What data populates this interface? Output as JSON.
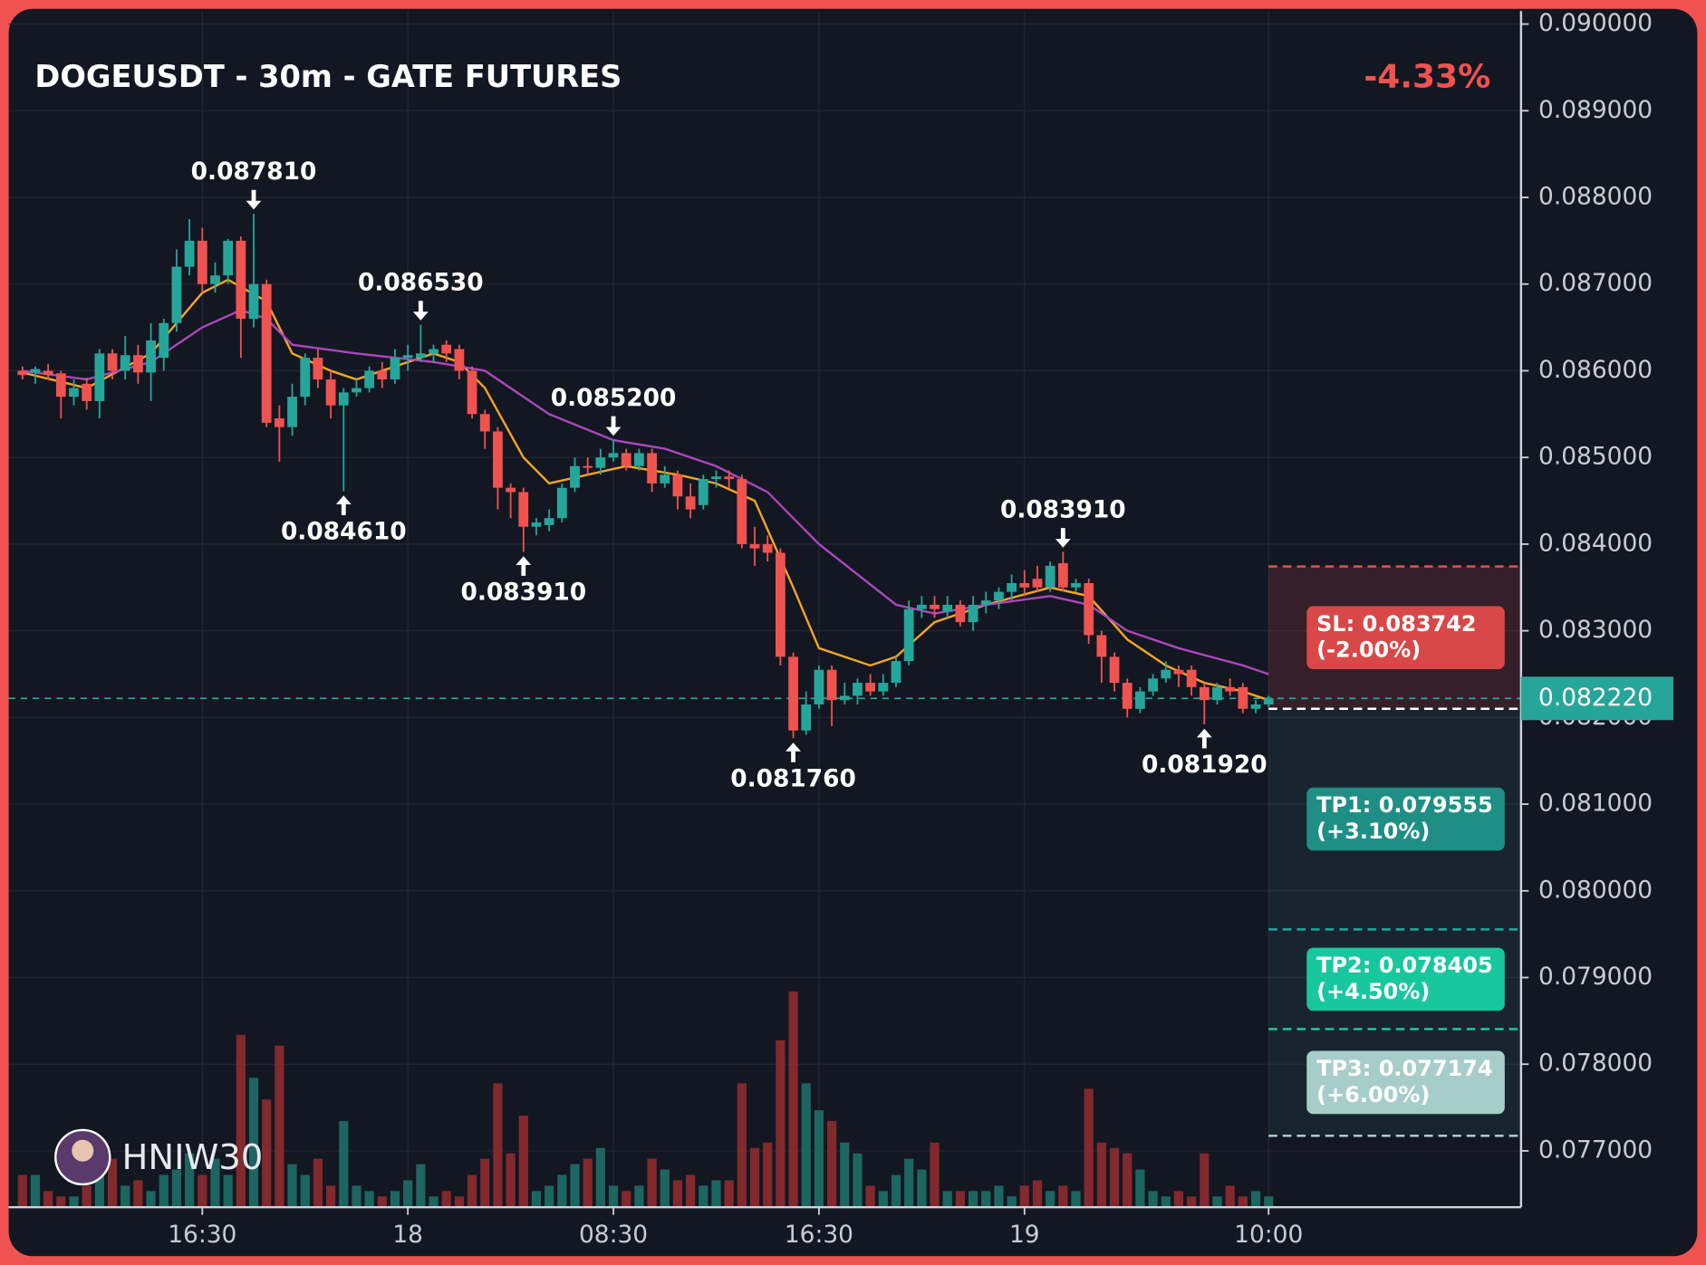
{
  "chart_data": {
    "type": "candlestick",
    "title": "DOGEUSDT - 30m - GATE FUTURES",
    "change": "-4.33%",
    "watermark": "HNIW30",
    "colors": {
      "up": "#26a69a",
      "down": "#ef5350",
      "up_volume": "#1f6e67",
      "down_volume": "#8e2b2d"
    },
    "open": [
      0.086,
      0.08598,
      0.086,
      0.08597,
      0.0857,
      0.08585,
      0.08565,
      0.0862,
      0.086,
      0.08618,
      0.08598,
      0.08615,
      0.08655,
      0.0872,
      0.0875,
      0.087,
      0.0871,
      0.0875,
      0.0866,
      0.087,
      0.08545,
      0.08535,
      0.0857,
      0.08615,
      0.0859,
      0.0856,
      0.08575,
      0.0858,
      0.086,
      0.0859,
      0.08615,
      0.08615,
      0.0862,
      0.0863,
      0.08625,
      0.086,
      0.0855,
      0.0853,
      0.08465,
      0.0846,
      0.0842,
      0.08422,
      0.0843,
      0.08465,
      0.0849,
      0.08488,
      0.085,
      0.08505,
      0.0849,
      0.08505,
      0.0847,
      0.0848,
      0.08455,
      0.08445,
      0.08475,
      0.08478,
      0.08475,
      0.084,
      0.084,
      0.0839,
      0.0827,
      0.08185,
      0.08215,
      0.08255,
      0.0822,
      0.08225,
      0.0824,
      0.0823,
      0.0824,
      0.08265,
      0.08325,
      0.0833,
      0.08322,
      0.0833,
      0.0831,
      0.0833,
      0.08335,
      0.08345,
      0.08355,
      0.0836,
      0.0835,
      0.08378,
      0.0835,
      0.08355,
      0.08295,
      0.0827,
      0.0824,
      0.0821,
      0.0823,
      0.08245,
      0.08255,
      0.08255,
      0.08235,
      0.0822,
      0.08235,
      0.08235,
      0.0821,
      0.08215
    ],
    "high": [
      0.08605,
      0.08605,
      0.08608,
      0.086,
      0.0859,
      0.08592,
      0.08625,
      0.08625,
      0.0864,
      0.0863,
      0.08655,
      0.0866,
      0.0874,
      0.08775,
      0.08765,
      0.08725,
      0.08752,
      0.08755,
      0.08781,
      0.08705,
      0.0856,
      0.08585,
      0.0862,
      0.08625,
      0.086,
      0.0858,
      0.0859,
      0.08605,
      0.0861,
      0.08625,
      0.0863,
      0.08653,
      0.0863,
      0.08635,
      0.0863,
      0.08605,
      0.08555,
      0.08535,
      0.0847,
      0.08465,
      0.0843,
      0.0844,
      0.0847,
      0.085,
      0.085,
      0.0851,
      0.0852,
      0.0851,
      0.0851,
      0.0851,
      0.0849,
      0.08485,
      0.0847,
      0.0848,
      0.08485,
      0.08485,
      0.0848,
      0.0842,
      0.0841,
      0.08395,
      0.08275,
      0.0823,
      0.0826,
      0.0826,
      0.0824,
      0.08245,
      0.0825,
      0.0825,
      0.0827,
      0.08335,
      0.0834,
      0.0834,
      0.0834,
      0.08335,
      0.0834,
      0.08345,
      0.0835,
      0.08365,
      0.0837,
      0.08375,
      0.0838,
      0.08391,
      0.0836,
      0.0836,
      0.083,
      0.08275,
      0.08245,
      0.08235,
      0.0825,
      0.08265,
      0.0826,
      0.0826,
      0.0824,
      0.0824,
      0.08245,
      0.0824,
      0.0822,
      0.08225
    ],
    "low": [
      0.0859,
      0.08585,
      0.0859,
      0.08545,
      0.0856,
      0.08555,
      0.08545,
      0.0859,
      0.0859,
      0.08585,
      0.08565,
      0.086,
      0.08645,
      0.0871,
      0.0869,
      0.0869,
      0.087,
      0.08615,
      0.0865,
      0.08535,
      0.08495,
      0.08525,
      0.0856,
      0.0858,
      0.08545,
      0.08461,
      0.0857,
      0.08575,
      0.0858,
      0.08585,
      0.086,
      0.0861,
      0.0861,
      0.0861,
      0.0859,
      0.08545,
      0.0851,
      0.0844,
      0.0843,
      0.08391,
      0.0841,
      0.08415,
      0.08425,
      0.0846,
      0.0848,
      0.0848,
      0.08495,
      0.08485,
      0.08485,
      0.0846,
      0.08465,
      0.0844,
      0.0843,
      0.0844,
      0.08465,
      0.08465,
      0.08395,
      0.08375,
      0.0838,
      0.0826,
      0.08176,
      0.0818,
      0.0821,
      0.0819,
      0.08215,
      0.08215,
      0.08225,
      0.08225,
      0.08235,
      0.0826,
      0.08315,
      0.08315,
      0.08315,
      0.08305,
      0.083,
      0.0832,
      0.08325,
      0.08335,
      0.0834,
      0.08345,
      0.08345,
      0.08345,
      0.08345,
      0.08285,
      0.0824,
      0.0823,
      0.082,
      0.08205,
      0.08225,
      0.0824,
      0.08235,
      0.08225,
      0.08192,
      0.08215,
      0.08225,
      0.08205,
      0.08205,
      0.08212
    ],
    "close": [
      0.08595,
      0.08602,
      0.08595,
      0.0857,
      0.0858,
      0.08565,
      0.0862,
      0.086,
      0.08618,
      0.08598,
      0.08635,
      0.08655,
      0.0872,
      0.0875,
      0.087,
      0.0871,
      0.0875,
      0.0866,
      0.087,
      0.0854,
      0.08535,
      0.0857,
      0.08615,
      0.0859,
      0.0856,
      0.08575,
      0.0858,
      0.086,
      0.0859,
      0.08615,
      0.08618,
      0.0862,
      0.08625,
      0.0862,
      0.086,
      0.0855,
      0.0853,
      0.08465,
      0.0846,
      0.0842,
      0.08425,
      0.0843,
      0.08465,
      0.0849,
      0.08488,
      0.085,
      0.08505,
      0.0849,
      0.08505,
      0.0847,
      0.0848,
      0.08455,
      0.0844,
      0.08475,
      0.08478,
      0.08475,
      0.084,
      0.08395,
      0.0839,
      0.0827,
      0.08185,
      0.08215,
      0.08255,
      0.0822,
      0.08225,
      0.0824,
      0.0823,
      0.0824,
      0.08265,
      0.08325,
      0.0833,
      0.08325,
      0.0833,
      0.0831,
      0.0833,
      0.08335,
      0.08345,
      0.08355,
      0.0835,
      0.0835,
      0.08375,
      0.0835,
      0.08355,
      0.08295,
      0.0827,
      0.0824,
      0.0821,
      0.0823,
      0.08245,
      0.08255,
      0.0825,
      0.08235,
      0.0822,
      0.08235,
      0.0823,
      0.0821,
      0.08215,
      0.08222
    ],
    "volume": [
      30,
      30,
      15,
      10,
      10,
      20,
      30,
      45,
      20,
      25,
      15,
      30,
      35,
      50,
      30,
      45,
      30,
      160,
      120,
      100,
      150,
      40,
      30,
      45,
      20,
      80,
      20,
      15,
      10,
      15,
      25,
      40,
      10,
      15,
      10,
      30,
      45,
      115,
      50,
      85,
      15,
      20,
      30,
      40,
      45,
      55,
      20,
      15,
      20,
      45,
      35,
      25,
      30,
      20,
      25,
      25,
      115,
      55,
      60,
      155,
      200,
      115,
      90,
      80,
      60,
      50,
      20,
      15,
      30,
      45,
      35,
      60,
      15,
      15,
      15,
      15,
      20,
      10,
      20,
      25,
      15,
      20,
      15,
      110,
      60,
      55,
      50,
      35,
      15,
      10,
      15,
      10,
      50,
      10,
      20,
      10,
      15,
      10
    ],
    "volume_ylim": [
      0,
      220
    ],
    "lines": [
      {
        "color": "#f5a623",
        "x": [
          0,
          5,
          10,
          14,
          16,
          19,
          21,
          24,
          26,
          28,
          32,
          34,
          36,
          39,
          41,
          44,
          47,
          51,
          54,
          57,
          60,
          62,
          66,
          68,
          71,
          75,
          80,
          83,
          86,
          89,
          92,
          95,
          97
        ],
        "values": [
          0.08598,
          0.0858,
          0.0862,
          0.0869,
          0.08705,
          0.0868,
          0.0862,
          0.086,
          0.0859,
          0.086,
          0.0862,
          0.0861,
          0.0858,
          0.085,
          0.0847,
          0.0848,
          0.0849,
          0.0848,
          0.0847,
          0.0845,
          0.0835,
          0.0828,
          0.0826,
          0.0827,
          0.0831,
          0.0833,
          0.0835,
          0.0834,
          0.0829,
          0.0826,
          0.0824,
          0.0823,
          0.0822
        ]
      },
      {
        "color": "#ab47bc",
        "x": [
          0,
          5,
          10,
          14,
          17,
          19,
          21,
          26,
          32,
          36,
          41,
          46,
          50,
          54,
          58,
          62,
          68,
          71,
          75,
          80,
          83,
          86,
          90,
          95,
          97
        ],
        "values": [
          0.086,
          0.0859,
          0.0861,
          0.0865,
          0.0867,
          0.0866,
          0.0863,
          0.0862,
          0.0861,
          0.086,
          0.0855,
          0.0852,
          0.0851,
          0.0849,
          0.0846,
          0.084,
          0.0833,
          0.0832,
          0.0833,
          0.0834,
          0.0833,
          0.083,
          0.0828,
          0.0826,
          0.0825
        ]
      }
    ],
    "annotations": [
      {
        "x": 18,
        "value": 0.08781,
        "label": "0.087810",
        "side": "high"
      },
      {
        "x": 31,
        "value": 0.08653,
        "label": "0.086530",
        "side": "high"
      },
      {
        "x": 25,
        "value": 0.08461,
        "label": "0.084610",
        "side": "low"
      },
      {
        "x": 39,
        "value": 0.08391,
        "label": "0.083910",
        "side": "low"
      },
      {
        "x": 46,
        "value": 0.0852,
        "label": "0.085200",
        "side": "high"
      },
      {
        "x": 60,
        "value": 0.08176,
        "label": "0.081760",
        "side": "low"
      },
      {
        "x": 81,
        "value": 0.08391,
        "label": "0.083910",
        "side": "high"
      },
      {
        "x": 92,
        "value": 0.08192,
        "label": "0.081920",
        "side": "low"
      }
    ],
    "last_price": {
      "value": 0.08222,
      "label": "0.082220",
      "color": "#26a69a"
    },
    "entry": {
      "value": 0.0821,
      "color": "#ffffff"
    },
    "levels": [
      {
        "value": 0.083742,
        "label": "SL: 0.083742",
        "change": "(-2.00%)",
        "color": "#ef5350",
        "box": "#d84848"
      },
      {
        "value": 0.079555,
        "label": "TP1: 0.079555",
        "change": "(+3.10%)",
        "color": "#26a69a",
        "box": "#1f8f85"
      },
      {
        "value": 0.078405,
        "label": "TP2: 0.078405",
        "change": "(+4.50%)",
        "color": "#1dd1a1",
        "box": "#19c79e"
      },
      {
        "value": 0.077174,
        "label": "TP3: 0.077174",
        "change": "(+6.00%)",
        "color": "#b0d6d2",
        "box": "#a6cdc9"
      }
    ],
    "ylim": [
      0.07635,
      0.09015
    ],
    "yticks": [
      {
        "value": 0.077,
        "label": "0.077000"
      },
      {
        "value": 0.078,
        "label": "0.078000"
      },
      {
        "value": 0.079,
        "label": "0.079000"
      },
      {
        "value": 0.08,
        "label": "0.080000"
      },
      {
        "value": 0.081,
        "label": "0.081000"
      },
      {
        "value": 0.082,
        "label": "0.082000"
      },
      {
        "value": 0.083,
        "label": "0.083000"
      },
      {
        "value": 0.084,
        "label": "0.084000"
      },
      {
        "value": 0.085,
        "label": "0.085000"
      },
      {
        "value": 0.086,
        "label": "0.086000"
      },
      {
        "value": 0.087,
        "label": "0.087000"
      },
      {
        "value": 0.088,
        "label": "0.088000"
      },
      {
        "value": 0.089,
        "label": "0.089000"
      },
      {
        "value": 0.09,
        "label": "0.090000"
      }
    ],
    "xlim": [
      -1.07,
      116.65
    ],
    "xticks": [
      {
        "value": 14,
        "label": "16:30"
      },
      {
        "value": 30,
        "label": "18"
      },
      {
        "value": 46,
        "label": "08:30"
      },
      {
        "value": 62,
        "label": "16:30"
      },
      {
        "value": 78,
        "label": "19"
      },
      {
        "value": 97,
        "label": "10:00"
      }
    ],
    "grid": true
  }
}
